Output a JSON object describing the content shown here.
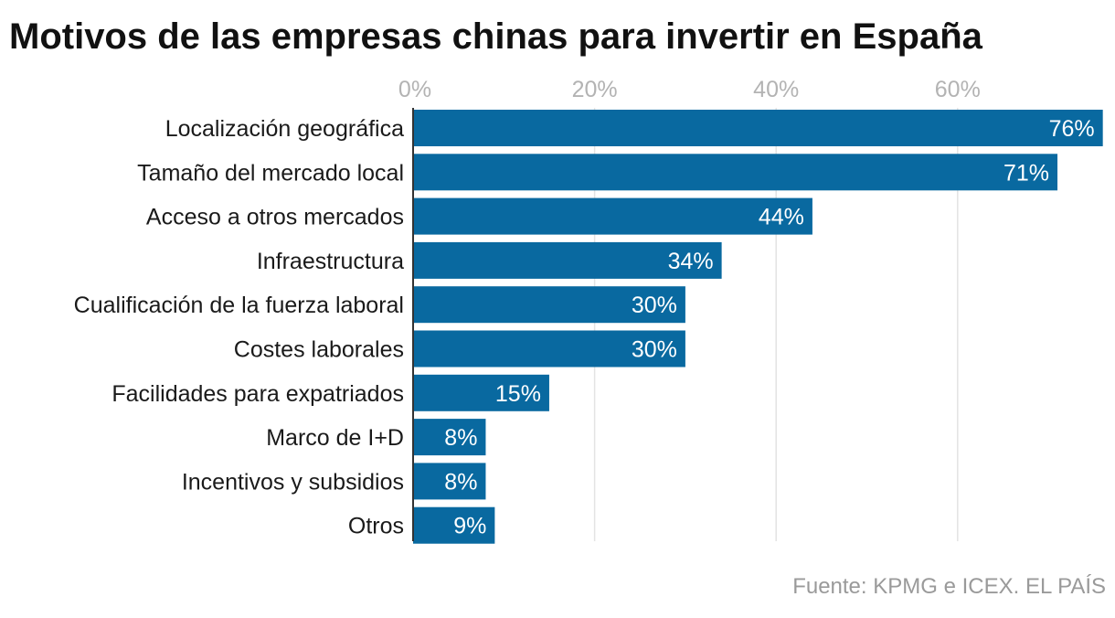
{
  "title": "Motivos de las empresas chinas para invertir en España",
  "source": "Fuente: KPMG e ICEX. EL PAÍS",
  "colors": {
    "bar": "#0969a0",
    "grid": "#e3e3e3",
    "axis": "#333333",
    "tick_label": "#b3b3b3",
    "category_label": "#1a1a1a",
    "value_label": "#ffffff"
  },
  "chart_data": {
    "type": "bar",
    "orientation": "horizontal",
    "categories": [
      "Localización geográfica",
      "Tamaño del mercado local",
      "Acceso a otros mercados",
      "Infraestructura",
      "Cualificación de la fuerza laboral",
      "Costes laborales",
      "Facilidades para expatriados",
      "Marco de I+D",
      "Incentivos y subsidios",
      "Otros"
    ],
    "values": [
      76,
      71,
      44,
      34,
      30,
      30,
      15,
      8,
      8,
      9
    ],
    "value_labels": [
      "76%",
      "71%",
      "44%",
      "34%",
      "30%",
      "30%",
      "15%",
      "8%",
      "8%",
      "9%"
    ],
    "x_ticks": [
      0,
      20,
      40,
      60
    ],
    "x_tick_labels": [
      "0%",
      "20%",
      "40%",
      "60%"
    ],
    "xlim": [
      0,
      76
    ],
    "grid": true,
    "legend": "none"
  }
}
